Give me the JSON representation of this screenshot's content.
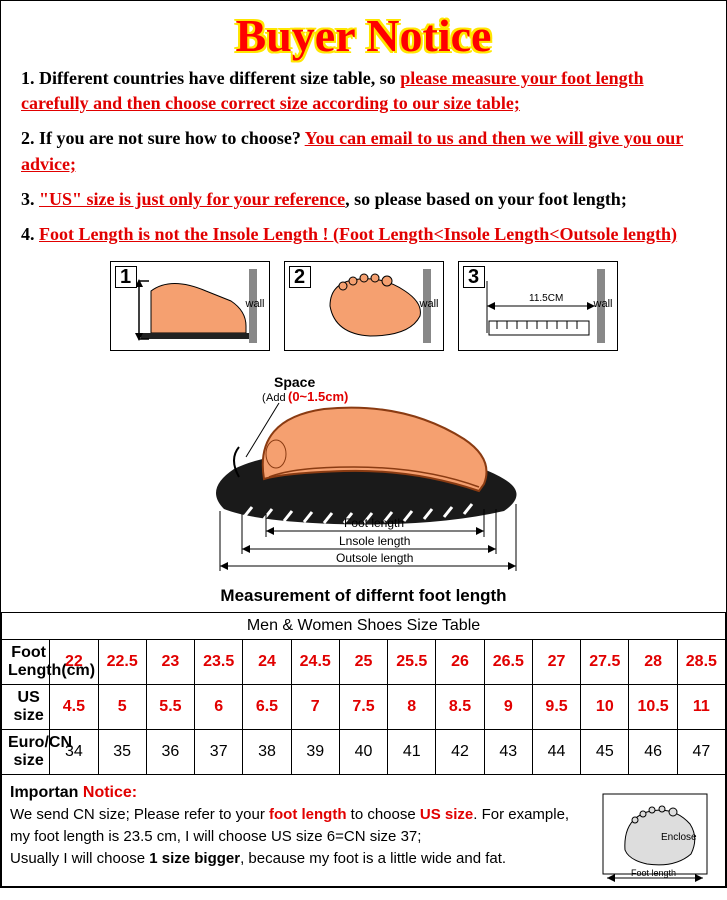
{
  "title": "Buyer Notice",
  "notices": [
    {
      "num": "1.",
      "black": "Different countries have different size table, so ",
      "red": "please measure your foot length carefully and then choose correct size according to our size table;"
    },
    {
      "num": "2.",
      "black": "If you are not sure how to choose? ",
      "red": "You can email to us and then we will give you our advice;"
    },
    {
      "num": "3.",
      "red_first": "\"US\" size is just only for your reference",
      "black_after": ", so please based on your foot length;"
    },
    {
      "num": "4.",
      "red_only": "Foot Length is not the Insole Length ! (Foot Length<Insole Length<Outsole length)"
    }
  ],
  "diag_wall": "wall",
  "diag3_len": "11.5CM",
  "big_diag": {
    "space_lbl": "Space",
    "space_add": "Add",
    "space_range": "(0~1.5cm)",
    "foot_len": "Foot length",
    "insole_len": "Lnsole length",
    "outsole_len": "Outsole length"
  },
  "measure_caption": "Measurement of differnt foot length",
  "table": {
    "title": "Men & Women  Shoes Size Table",
    "rows": [
      {
        "head": "Foot Length(cm)",
        "cls": "foot-cell",
        "vals": [
          "22",
          "22.5",
          "23",
          "23.5",
          "24",
          "24.5",
          "25",
          "25.5",
          "26",
          "26.5",
          "27",
          "27.5",
          "28",
          "28.5"
        ]
      },
      {
        "head": "US size",
        "cls": "us-cell",
        "vals": [
          "4.5",
          "5",
          "5.5",
          "6",
          "6.5",
          "7",
          "7.5",
          "8",
          "8.5",
          "9",
          "9.5",
          "10",
          "10.5",
          "11"
        ]
      },
      {
        "head": "Euro/CN size",
        "cls": "",
        "vals": [
          "34",
          "35",
          "36",
          "37",
          "38",
          "39",
          "40",
          "41",
          "42",
          "43",
          "44",
          "45",
          "46",
          "47"
        ]
      }
    ]
  },
  "bottom": {
    "hdr_black": "Importan ",
    "hdr_red": "Notice:",
    "l1a": "We send CN size; Please refer to your ",
    "l1b": "foot length",
    "l1c": " to choose ",
    "l1d": "US size",
    "l1e": ". For example,",
    "l2": "my foot length is 23.5 cm, I will choose US size 6=CN size 37;",
    "l3a": "Usually I will choose ",
    "l3b": "1 size bigger",
    "l3c": ", because my foot is a little wide and fat.",
    "enclose": "Enclose",
    "footlen": "Foot length"
  },
  "colors": {
    "red": "#e10000",
    "yellow": "#ffe600",
    "skin": "#f5a070",
    "skin_dark": "#d17840",
    "sole": "#1a1a1a"
  }
}
